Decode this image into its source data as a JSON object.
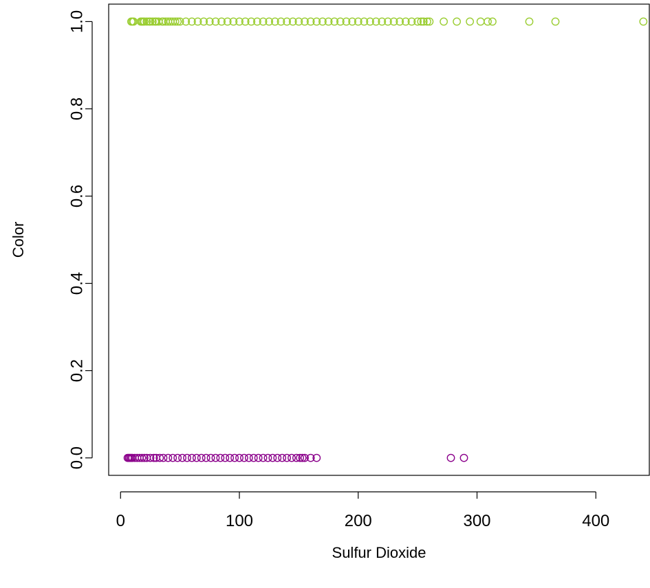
{
  "chart_data": {
    "type": "scatter",
    "xlabel": "Sulfur Dioxide",
    "ylabel": "Color",
    "xlim": [
      -10,
      445
    ],
    "ylim": [
      -0.04,
      1.04
    ],
    "x_ticks": [
      0,
      100,
      200,
      300,
      400
    ],
    "y_ticks": [
      0.0,
      0.2,
      0.4,
      0.6,
      0.8,
      1.0
    ],
    "x_tick_labels": [
      "0",
      "100",
      "200",
      "300",
      "400"
    ],
    "y_tick_labels": [
      "0.0",
      "0.2",
      "0.4",
      "0.6",
      "0.8",
      "1.0"
    ],
    "grid": false,
    "legend": "none",
    "marker": "open-circle",
    "series": [
      {
        "color": "#9acd32",
        "y": 1,
        "x": [
          9,
          10,
          11,
          17,
          18,
          19,
          20,
          22,
          24,
          25,
          27,
          29,
          30,
          32,
          35,
          36,
          38,
          40,
          42,
          44,
          46,
          48,
          50,
          55,
          60,
          65,
          70,
          75,
          80,
          85,
          90,
          95,
          100,
          105,
          110,
          115,
          120,
          125,
          130,
          135,
          140,
          145,
          150,
          155,
          160,
          165,
          170,
          175,
          180,
          185,
          190,
          195,
          200,
          205,
          210,
          215,
          220,
          225,
          230,
          235,
          240,
          245,
          250,
          253,
          255,
          258,
          260,
          272,
          283,
          294,
          303,
          309,
          313,
          344,
          366,
          440
        ]
      },
      {
        "color": "#8b008b",
        "y": 0,
        "x": [
          6,
          7,
          8,
          9,
          10,
          12,
          14,
          16,
          18,
          20,
          22,
          25,
          28,
          30,
          33,
          36,
          40,
          44,
          48,
          52,
          56,
          60,
          64,
          68,
          72,
          76,
          80,
          84,
          88,
          92,
          96,
          100,
          104,
          108,
          112,
          116,
          120,
          124,
          128,
          132,
          136,
          140,
          144,
          148,
          151,
          153,
          155,
          160,
          165,
          278,
          289
        ]
      }
    ]
  }
}
